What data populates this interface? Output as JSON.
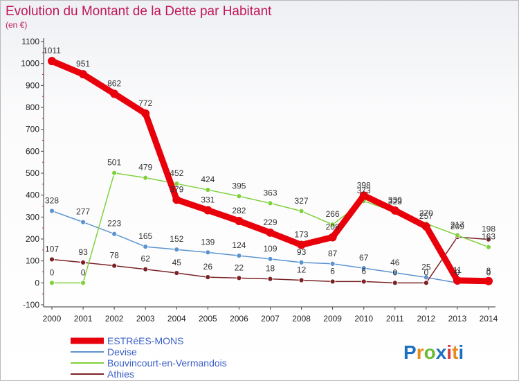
{
  "chart_data": {
    "type": "line",
    "title": "Evolution du Montant de la Dette par Habitant",
    "subtitle": "(en €)",
    "x": [
      "2000",
      "2001",
      "2002",
      "2003",
      "2004",
      "2005",
      "2006",
      "2007",
      "2008",
      "2009",
      "2010",
      "2011",
      "2012",
      "2013",
      "2014"
    ],
    "ylim": [
      -100,
      1100
    ],
    "yticks": [
      -100,
      0,
      100,
      200,
      300,
      400,
      500,
      600,
      700,
      800,
      900,
      1000,
      1100
    ],
    "grid": false,
    "legend_position": "bottom-left",
    "series": [
      {
        "name": "ESTRéES-MONS",
        "color": "#e8000b",
        "values": [
          1011,
          951,
          862,
          772,
          379,
          331,
          282,
          229,
          173,
          208,
          398,
          330,
          257,
          11,
          8
        ],
        "labels": [
          "1011",
          "951",
          "862",
          "772",
          "379",
          "331",
          "282",
          "229",
          "173",
          "208",
          "398",
          "330",
          "257",
          "11",
          "8"
        ]
      },
      {
        "name": "Devise",
        "color": "#5b93cf",
        "values": [
          328,
          277,
          223,
          165,
          152,
          139,
          124,
          109,
          93,
          87,
          67,
          46,
          25,
          0,
          0
        ],
        "labels": [
          "328",
          "277",
          "223",
          "165",
          "152",
          "139",
          "124",
          "109",
          "93",
          "87",
          "67",
          "46",
          "25",
          "0",
          "0"
        ]
      },
      {
        "name": "Bouvincourt-en-Vermandois",
        "color": "#7fd13b",
        "values": [
          0,
          0,
          501,
          479,
          452,
          424,
          395,
          363,
          327,
          266,
          373,
          323,
          270,
          217,
          163
        ],
        "labels": [
          "0",
          "0",
          "501",
          "479",
          "452",
          "424",
          "395",
          "363",
          "327",
          "266",
          "373",
          "323",
          "270",
          "217",
          "163"
        ]
      },
      {
        "name": "Athies",
        "color": "#7b2226",
        "values": [
          107,
          93,
          78,
          62,
          45,
          26,
          22,
          18,
          12,
          6,
          6,
          0,
          0,
          209,
          198
        ],
        "labels": [
          "107",
          "93",
          "78",
          "62",
          "45",
          "26",
          "22",
          "18",
          "12",
          "6",
          "6",
          "0",
          "0",
          "209",
          "198"
        ]
      }
    ]
  },
  "brand": {
    "name": "Proxiti",
    "letters": [
      "P",
      "r",
      "o",
      "x",
      "i",
      "t",
      "i"
    ],
    "colors": [
      "#1f6fc0",
      "#e98a1a",
      "#6cba34",
      "#1f6fc0",
      "#d93a3a",
      "#e98a1a",
      "#1f6fc0"
    ]
  }
}
